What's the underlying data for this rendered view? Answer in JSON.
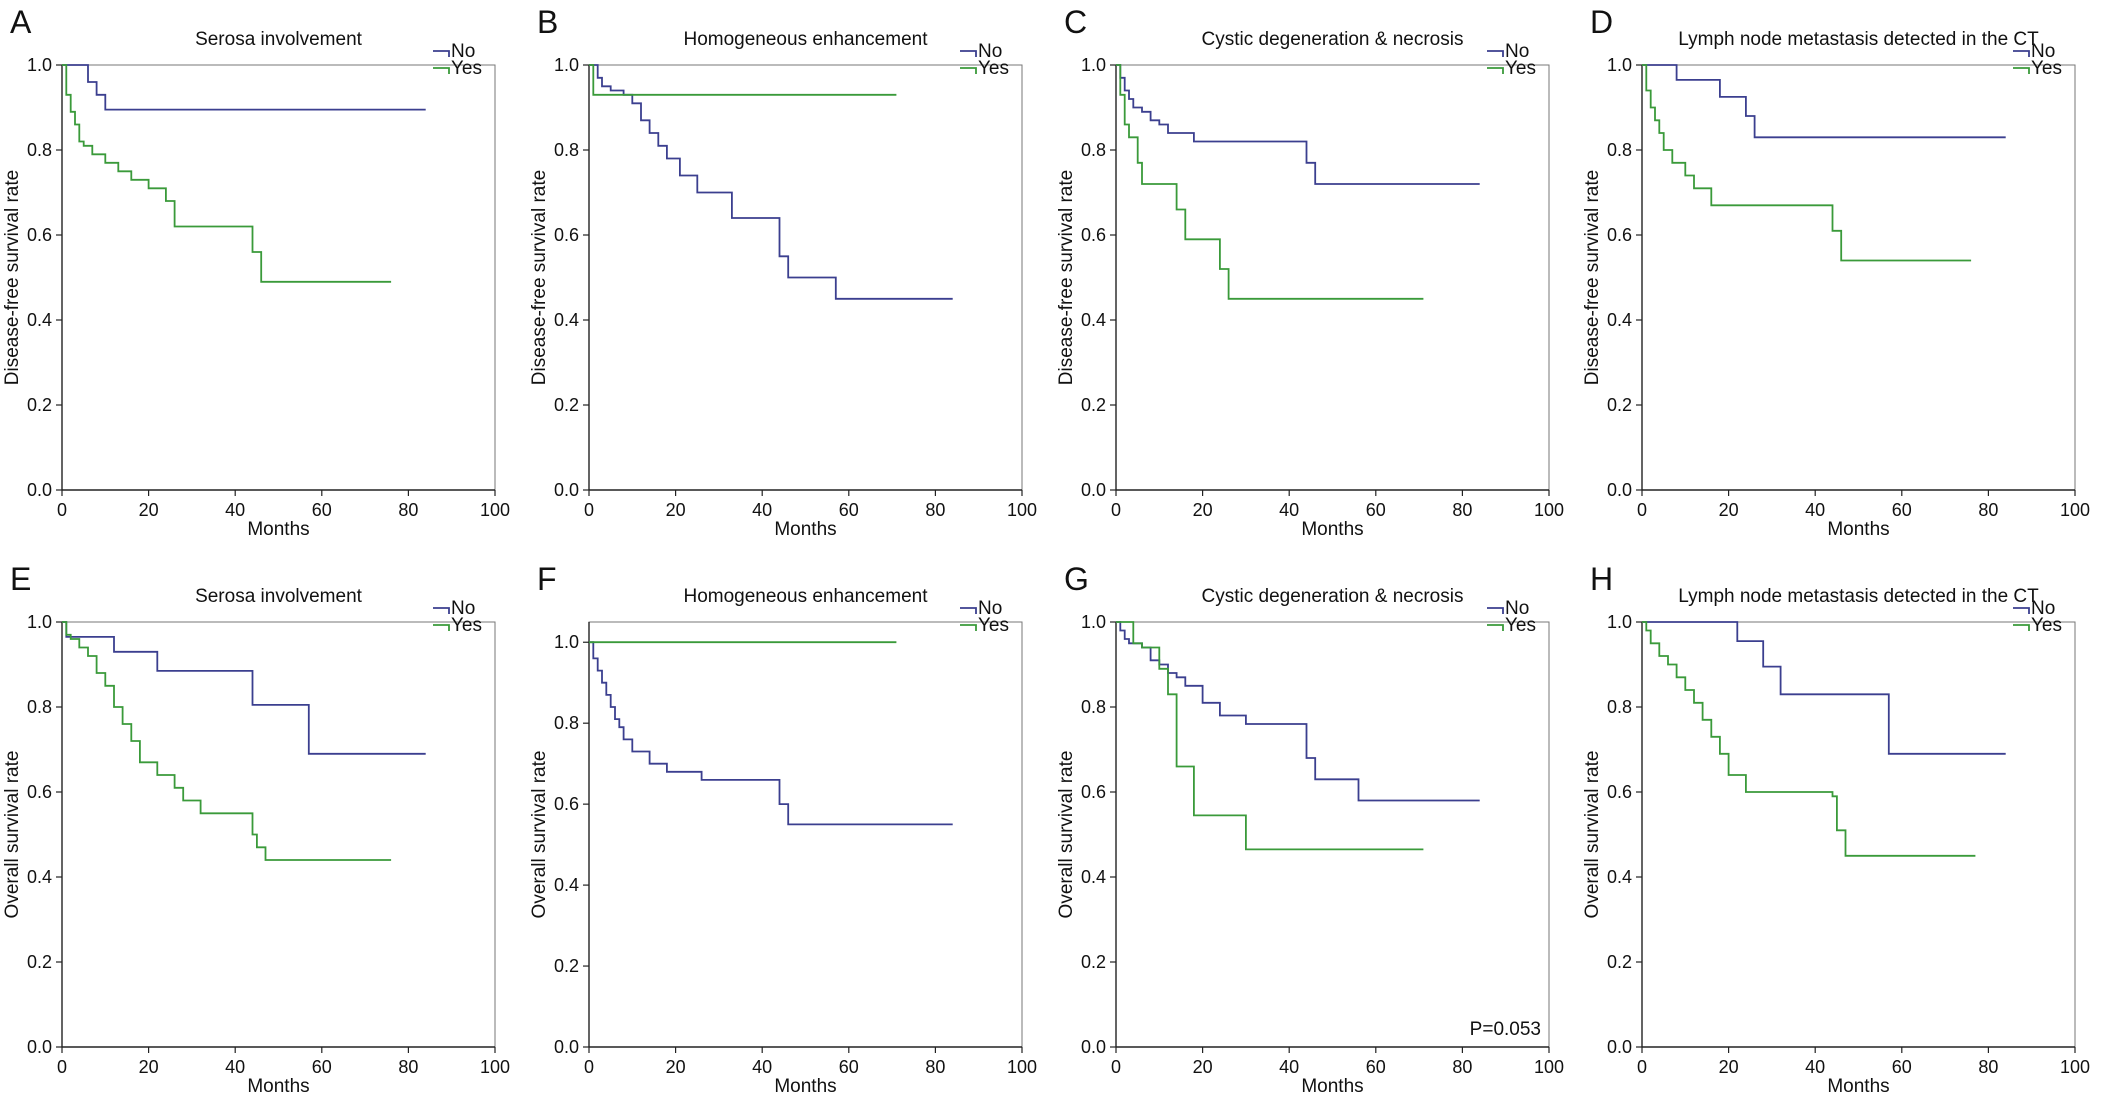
{
  "colors": {
    "no": "#3b3f8f",
    "yes": "#3a9a3a",
    "axis": "#222222",
    "frame": "#777777"
  },
  "chart_data": [
    {
      "type": "line",
      "panel": "A",
      "title": "Serosa involvement",
      "xlabel": "Months",
      "ylabel": "Disease-free survival rate",
      "xlim": [
        0,
        100
      ],
      "ylim": [
        0,
        1
      ],
      "xticks": [
        "0",
        "20",
        "40",
        "60",
        "80",
        "100"
      ],
      "yticks": [
        "0.0",
        "0.2",
        "0.4",
        "0.6",
        "0.8",
        "1.0"
      ],
      "legend": [
        "No",
        "Yes"
      ],
      "legend_position": "top-right",
      "annotation": "",
      "series": [
        {
          "name": "No",
          "x": [
            0,
            6,
            8,
            10,
            84
          ],
          "y": [
            1.0,
            0.96,
            0.93,
            0.895,
            0.895
          ]
        },
        {
          "name": "Yes",
          "x": [
            0,
            1,
            2,
            3,
            4,
            5,
            7,
            10,
            13,
            16,
            20,
            24,
            26,
            32,
            44,
            46,
            76
          ],
          "y": [
            1.0,
            0.93,
            0.89,
            0.86,
            0.82,
            0.81,
            0.79,
            0.77,
            0.75,
            0.73,
            0.71,
            0.68,
            0.62,
            0.62,
            0.56,
            0.49,
            0.49
          ]
        }
      ]
    },
    {
      "type": "line",
      "panel": "B",
      "title": "Homogeneous enhancement",
      "xlabel": "Months",
      "ylabel": "Disease-free survival rate",
      "xlim": [
        0,
        100
      ],
      "ylim": [
        0,
        1
      ],
      "xticks": [
        "0",
        "20",
        "40",
        "60",
        "80",
        "100"
      ],
      "yticks": [
        "0.0",
        "0.2",
        "0.4",
        "0.6",
        "0.8",
        "1.0"
      ],
      "legend": [
        "No",
        "Yes"
      ],
      "legend_position": "top-right",
      "annotation": "",
      "series": [
        {
          "name": "No",
          "x": [
            0,
            2,
            3,
            5,
            8,
            10,
            12,
            14,
            16,
            18,
            21,
            25,
            33,
            44,
            46,
            57,
            84
          ],
          "y": [
            1.0,
            0.97,
            0.95,
            0.94,
            0.93,
            0.91,
            0.87,
            0.84,
            0.81,
            0.78,
            0.74,
            0.7,
            0.64,
            0.55,
            0.5,
            0.45,
            0.45
          ]
        },
        {
          "name": "Yes",
          "x": [
            0,
            1,
            71
          ],
          "y": [
            1.0,
            0.93,
            0.93
          ]
        }
      ]
    },
    {
      "type": "line",
      "panel": "C",
      "title": "Cystic degeneration & necrosis",
      "xlabel": "Months",
      "ylabel": "Disease-free survival rate",
      "xlim": [
        0,
        100
      ],
      "ylim": [
        0,
        1
      ],
      "xticks": [
        "0",
        "20",
        "40",
        "60",
        "80",
        "100"
      ],
      "yticks": [
        "0.0",
        "0.2",
        "0.4",
        "0.6",
        "0.8",
        "1.0"
      ],
      "legend": [
        "No",
        "Yes"
      ],
      "legend_position": "top-right",
      "annotation": "",
      "series": [
        {
          "name": "No",
          "x": [
            0,
            1,
            2,
            3,
            4,
            6,
            8,
            10,
            12,
            18,
            44,
            46,
            84
          ],
          "y": [
            1.0,
            0.97,
            0.94,
            0.92,
            0.9,
            0.89,
            0.87,
            0.86,
            0.84,
            0.82,
            0.77,
            0.72,
            0.72
          ]
        },
        {
          "name": "Yes",
          "x": [
            0,
            1,
            2,
            3,
            5,
            6,
            14,
            16,
            24,
            26,
            71
          ],
          "y": [
            1.0,
            0.93,
            0.86,
            0.83,
            0.77,
            0.72,
            0.66,
            0.59,
            0.52,
            0.45,
            0.45
          ]
        }
      ]
    },
    {
      "type": "line",
      "panel": "D",
      "title": "Lymph node metastasis detected in the CT",
      "xlabel": "Months",
      "ylabel": "Disease-free survival rate",
      "xlim": [
        0,
        100
      ],
      "ylim": [
        0,
        1
      ],
      "xticks": [
        "0",
        "20",
        "40",
        "60",
        "80",
        "100"
      ],
      "yticks": [
        "0.0",
        "0.2",
        "0.4",
        "0.6",
        "0.8",
        "1.0"
      ],
      "legend": [
        "No",
        "Yes"
      ],
      "legend_position": "top-right",
      "annotation": "",
      "series": [
        {
          "name": "No",
          "x": [
            0,
            8,
            18,
            24,
            26,
            84
          ],
          "y": [
            1.0,
            0.965,
            0.925,
            0.88,
            0.83,
            0.83
          ]
        },
        {
          "name": "Yes",
          "x": [
            0,
            1,
            2,
            3,
            4,
            5,
            7,
            10,
            12,
            16,
            40,
            44,
            46,
            76
          ],
          "y": [
            1.0,
            0.94,
            0.9,
            0.87,
            0.84,
            0.8,
            0.77,
            0.74,
            0.71,
            0.67,
            0.67,
            0.61,
            0.54,
            0.54
          ]
        }
      ]
    },
    {
      "type": "line",
      "panel": "E",
      "title": "Serosa involvement",
      "xlabel": "Months",
      "ylabel": "Overall survival rate",
      "xlim": [
        0,
        100
      ],
      "ylim": [
        0,
        1
      ],
      "xticks": [
        "0",
        "20",
        "40",
        "60",
        "80",
        "100"
      ],
      "yticks": [
        "0.0",
        "0.2",
        "0.4",
        "0.6",
        "0.8",
        "1.0"
      ],
      "legend": [
        "No",
        "Yes"
      ],
      "legend_position": "top-right",
      "annotation": "",
      "series": [
        {
          "name": "No",
          "x": [
            0,
            1,
            12,
            22,
            44,
            57,
            84
          ],
          "y": [
            1.0,
            0.965,
            0.93,
            0.885,
            0.805,
            0.69,
            0.69
          ]
        },
        {
          "name": "Yes",
          "x": [
            0,
            1,
            2,
            4,
            6,
            8,
            10,
            12,
            14,
            16,
            18,
            22,
            26,
            28,
            32,
            44,
            45,
            47,
            76
          ],
          "y": [
            1.0,
            0.97,
            0.96,
            0.94,
            0.92,
            0.88,
            0.85,
            0.8,
            0.76,
            0.72,
            0.67,
            0.64,
            0.61,
            0.58,
            0.55,
            0.5,
            0.47,
            0.44,
            0.44
          ]
        }
      ]
    },
    {
      "type": "line",
      "panel": "F",
      "title": "Homogeneous enhancement",
      "xlabel": "Months",
      "ylabel": "Overall survival rate",
      "xlim": [
        0,
        100
      ],
      "ylim": [
        0,
        1.05
      ],
      "xticks": [
        "0",
        "20",
        "40",
        "60",
        "80",
        "100"
      ],
      "yticks": [
        "0.0",
        "0.2",
        "0.4",
        "0.6",
        "0.8",
        "1.0"
      ],
      "legend": [
        "No",
        "Yes"
      ],
      "legend_position": "top-right",
      "annotation": "",
      "series": [
        {
          "name": "No",
          "x": [
            0,
            1,
            2,
            3,
            4,
            5,
            6,
            7,
            8,
            10,
            14,
            18,
            26,
            44,
            46,
            84
          ],
          "y": [
            1.0,
            0.96,
            0.93,
            0.9,
            0.87,
            0.84,
            0.81,
            0.79,
            0.76,
            0.73,
            0.7,
            0.68,
            0.66,
            0.6,
            0.55,
            0.55
          ]
        },
        {
          "name": "Yes",
          "x": [
            0,
            71
          ],
          "y": [
            1.0,
            1.0
          ]
        }
      ]
    },
    {
      "type": "line",
      "panel": "G",
      "title": "Cystic degeneration & necrosis",
      "xlabel": "Months",
      "ylabel": "Overall survival rate",
      "xlim": [
        0,
        100
      ],
      "ylim": [
        0,
        1
      ],
      "xticks": [
        "0",
        "20",
        "40",
        "60",
        "80",
        "100"
      ],
      "yticks": [
        "0.0",
        "0.2",
        "0.4",
        "0.6",
        "0.8",
        "1.0"
      ],
      "legend": [
        "No",
        "Yes"
      ],
      "legend_position": "top-right",
      "annotation": "P=0.053",
      "series": [
        {
          "name": "No",
          "x": [
            0,
            1,
            2,
            3,
            6,
            8,
            10,
            12,
            14,
            16,
            20,
            24,
            30,
            44,
            46,
            48,
            56,
            84
          ],
          "y": [
            1.0,
            0.98,
            0.96,
            0.95,
            0.94,
            0.91,
            0.9,
            0.88,
            0.87,
            0.85,
            0.81,
            0.78,
            0.76,
            0.68,
            0.63,
            0.63,
            0.58,
            0.58
          ]
        },
        {
          "name": "Yes",
          "x": [
            0,
            4,
            6,
            10,
            12,
            14,
            18,
            30,
            71
          ],
          "y": [
            1.0,
            0.95,
            0.94,
            0.89,
            0.83,
            0.66,
            0.545,
            0.465,
            0.465
          ]
        }
      ]
    },
    {
      "type": "line",
      "panel": "H",
      "title": "Lymph node metastasis detected in the CT",
      "xlabel": "Months",
      "ylabel": "Overall survival rate",
      "xlim": [
        0,
        100
      ],
      "ylim": [
        0,
        1
      ],
      "xticks": [
        "0",
        "20",
        "40",
        "60",
        "80",
        "100"
      ],
      "yticks": [
        "0.0",
        "0.2",
        "0.4",
        "0.6",
        "0.8",
        "1.0"
      ],
      "legend": [
        "No",
        "Yes"
      ],
      "legend_position": "top-right",
      "annotation": "",
      "series": [
        {
          "name": "No",
          "x": [
            0,
            22,
            28,
            32,
            57,
            84
          ],
          "y": [
            1.0,
            0.955,
            0.895,
            0.83,
            0.69,
            0.69
          ]
        },
        {
          "name": "Yes",
          "x": [
            0,
            1,
            2,
            4,
            6,
            8,
            10,
            12,
            14,
            16,
            18,
            20,
            24,
            44,
            45,
            47,
            77
          ],
          "y": [
            1.0,
            0.98,
            0.95,
            0.92,
            0.9,
            0.87,
            0.84,
            0.81,
            0.77,
            0.73,
            0.69,
            0.64,
            0.6,
            0.59,
            0.51,
            0.45,
            0.45
          ]
        }
      ]
    }
  ]
}
